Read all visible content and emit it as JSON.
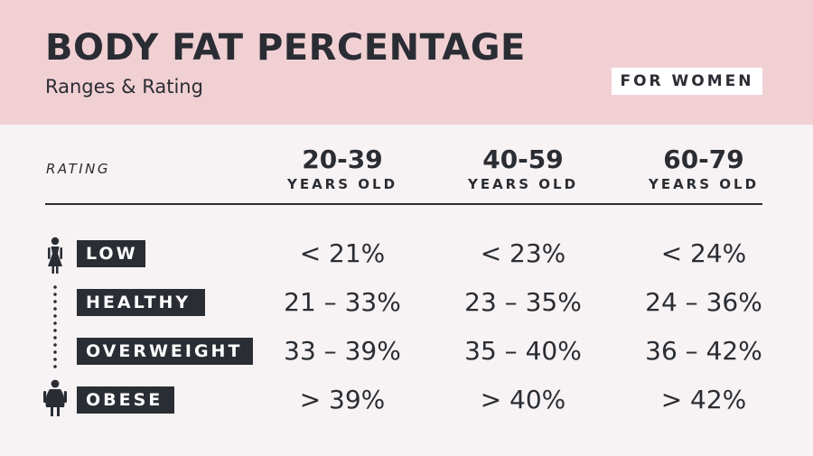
{
  "header": {
    "title": "BODY FAT PERCENTAGE",
    "subtitle": "Ranges & Rating",
    "badge": "FOR WOMEN"
  },
  "table": {
    "rating_header": "RATING",
    "columns": [
      {
        "range": "20-39",
        "unit": "YEARS OLD"
      },
      {
        "range": "40-59",
        "unit": "YEARS OLD"
      },
      {
        "range": "60-79",
        "unit": "YEARS OLD"
      }
    ],
    "rows": [
      {
        "label": "LOW",
        "values": [
          "< 21%",
          "< 23%",
          "< 24%"
        ]
      },
      {
        "label": "HEALTHY",
        "values": [
          "21 – 33%",
          "23 – 35%",
          "24 – 36%"
        ]
      },
      {
        "label": "OVERWEIGHT",
        "values": [
          "33 – 39%",
          "35 – 40%",
          "36 – 42%"
        ]
      },
      {
        "label": "OBESE",
        "values": [
          "> 39%",
          "> 40%",
          "> 42%"
        ]
      }
    ]
  },
  "icons": {
    "top": "slim-woman-icon",
    "bottom": "heavy-woman-icon"
  },
  "colors": {
    "header_bg": "#f1d0d4",
    "body_bg": "#f7f2f3",
    "ink": "#2a2d33"
  }
}
